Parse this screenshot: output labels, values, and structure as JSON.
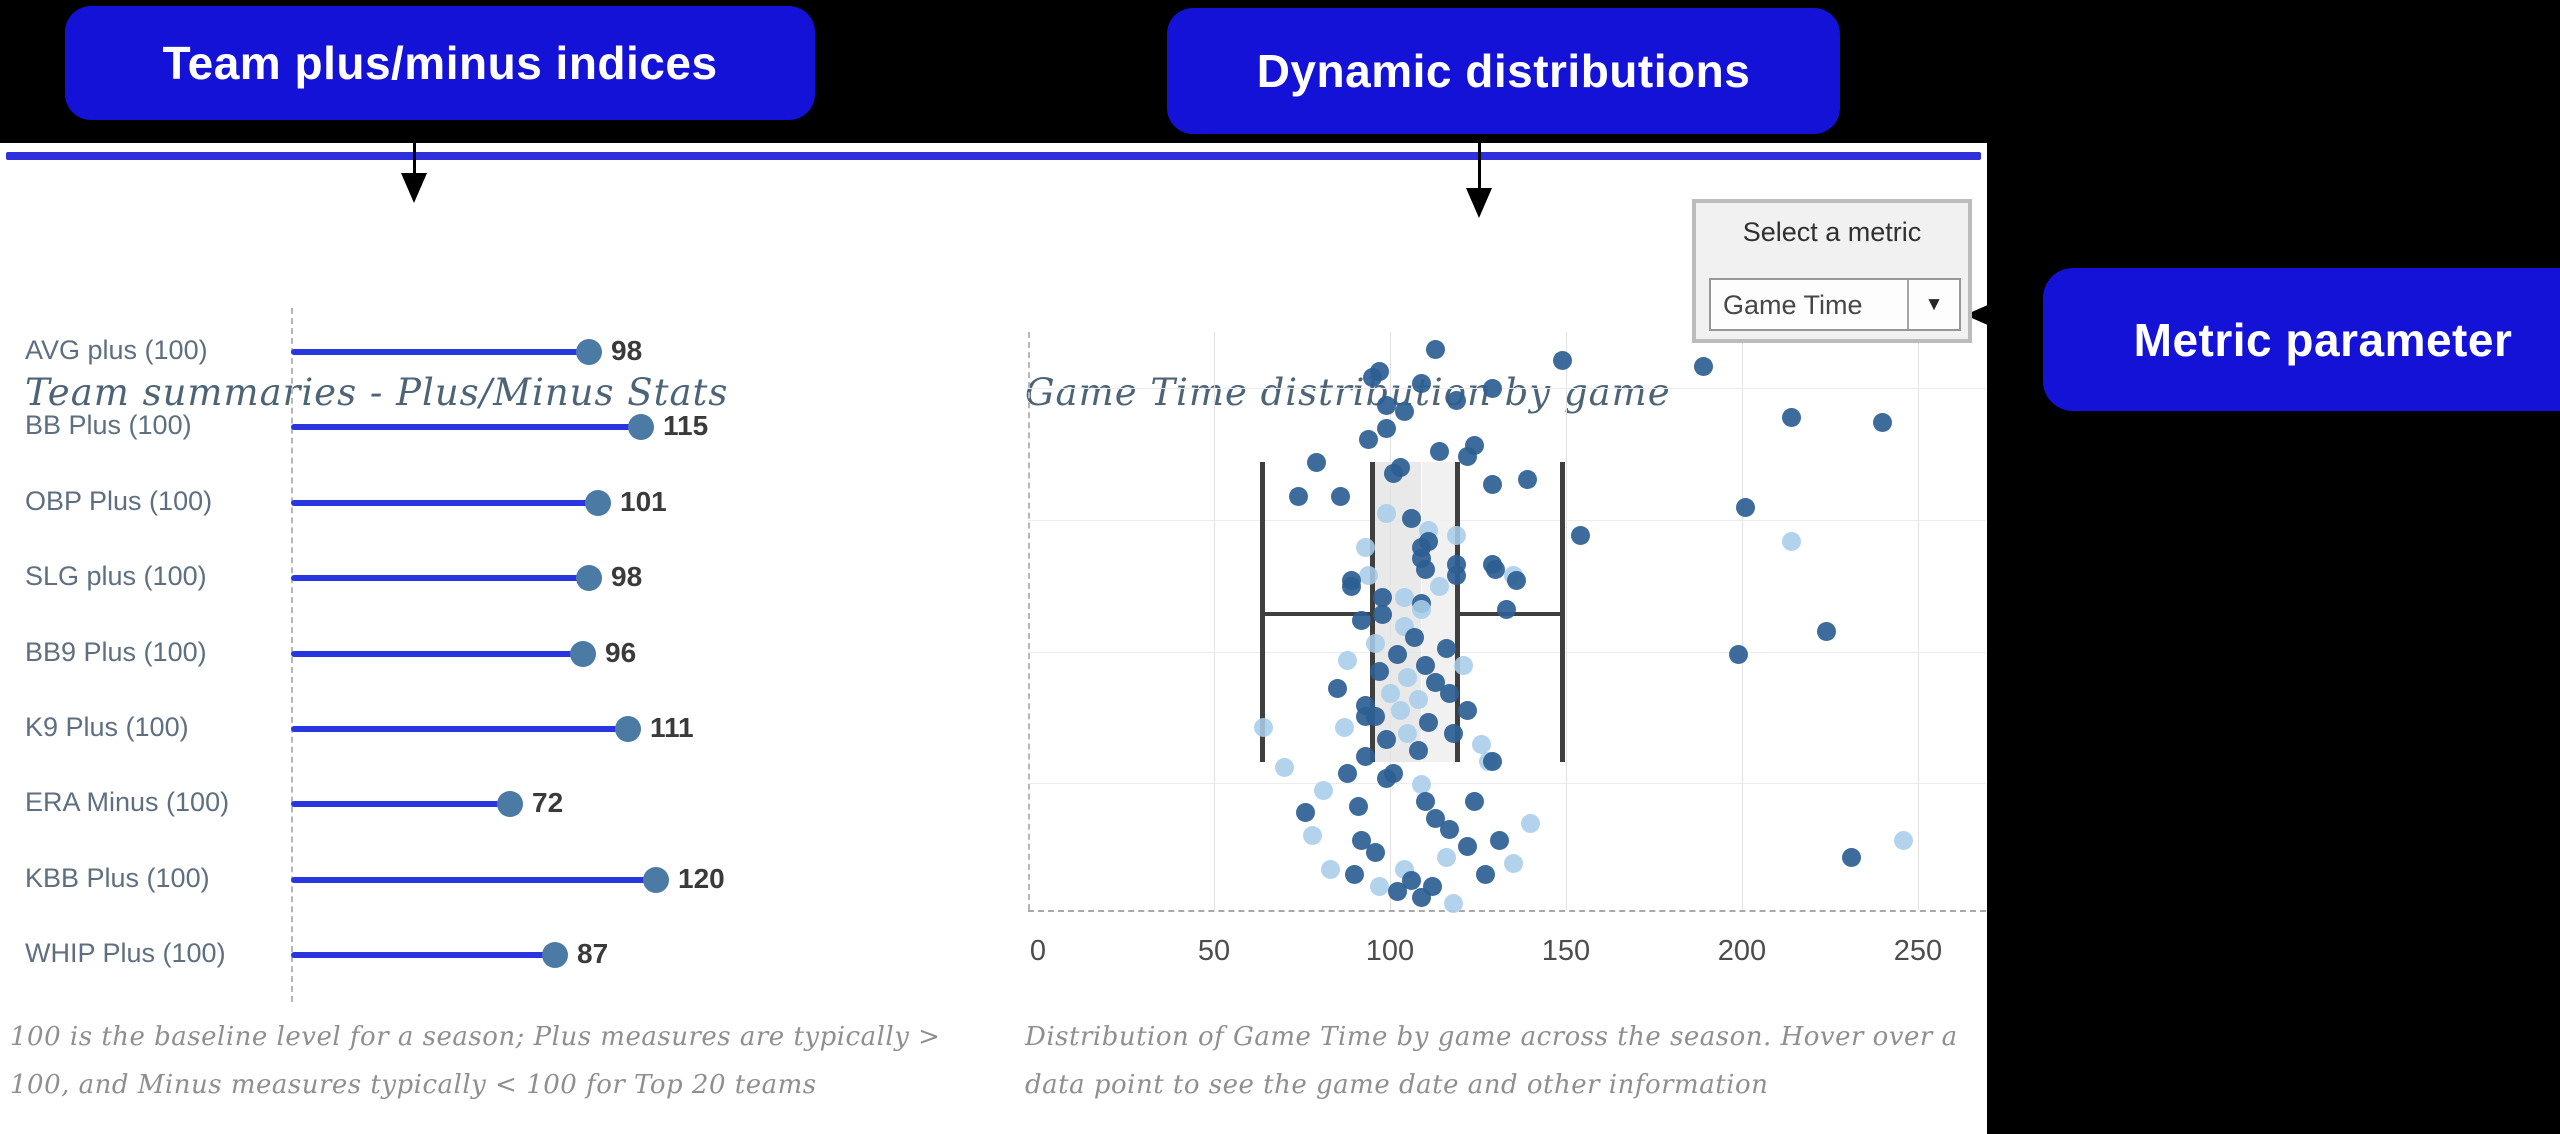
{
  "annotations": {
    "team_label": "Team plus/minus indices",
    "dist_label": "Dynamic distributions",
    "metric_label": "Metric parameter",
    "callout_bg": "#1412d6",
    "callout_text_color": "#ffffff",
    "divider_color": "#2f2fdb"
  },
  "chart_data": [
    {
      "type": "bar",
      "subtype": "lollipop-horizontal",
      "title": "Team summaries - Plus/Minus Stats",
      "categories": [
        "AVG plus (100)",
        "BB Plus (100)",
        "OBP Plus (100)",
        "SLG plus (100)",
        "BB9 Plus (100)",
        "K9 Plus (100)",
        "ERA Minus (100)",
        "KBB Plus (100)",
        "WHIP Plus (100)"
      ],
      "values": [
        98,
        115,
        101,
        98,
        96,
        111,
        72,
        120,
        87
      ],
      "baseline": 100,
      "xlim": [
        0,
        130
      ],
      "grid": false,
      "line_color": "#2936e0",
      "dot_color": "#4b7aa5",
      "footnote_lines": [
        "100 is the baseline level for a season; Plus measures are typically >",
        "100, and Minus measures typically < 100 for Top 20 teams"
      ]
    },
    {
      "type": "scatter",
      "subtype": "boxplot-with-jittered-points",
      "title": "Game Time distribution by game",
      "xlabel": "",
      "ylabel": "",
      "x_ticks": [
        0,
        50,
        100,
        150,
        200,
        250
      ],
      "xlim": [
        0,
        269
      ],
      "grid": true,
      "legend": "none",
      "box": {
        "whisker_low": 64,
        "q1": 95,
        "median": 109,
        "q3": 119,
        "whisker_high": 149
      },
      "point_colors": {
        "d": "#2d5e92",
        "l": "#a9cdea"
      },
      "points": [
        [
          113,
          0.02,
          "d"
        ],
        [
          149,
          0.04,
          "d"
        ],
        [
          189,
          0.05,
          "d"
        ],
        [
          97,
          0.06,
          "d"
        ],
        [
          95,
          0.07,
          "d"
        ],
        [
          109,
          0.08,
          "d"
        ],
        [
          129,
          0.09,
          "d"
        ],
        [
          119,
          0.11,
          "d"
        ],
        [
          99,
          0.12,
          "d"
        ],
        [
          104,
          0.13,
          "d"
        ],
        [
          214,
          0.14,
          "d"
        ],
        [
          240,
          0.15,
          "d"
        ],
        [
          99,
          0.16,
          "d"
        ],
        [
          94,
          0.18,
          "d"
        ],
        [
          124,
          0.19,
          "d"
        ],
        [
          114,
          0.2,
          "d"
        ],
        [
          122,
          0.21,
          "d"
        ],
        [
          79,
          0.22,
          "d"
        ],
        [
          103,
          0.23,
          "d"
        ],
        [
          101,
          0.24,
          "d"
        ],
        [
          139,
          0.25,
          "d"
        ],
        [
          129,
          0.26,
          "d"
        ],
        [
          74,
          0.28,
          "d"
        ],
        [
          86,
          0.28,
          "d"
        ],
        [
          201,
          0.3,
          "d"
        ],
        [
          99,
          0.31,
          "l"
        ],
        [
          106,
          0.32,
          "d"
        ],
        [
          111,
          0.34,
          "l"
        ],
        [
          154,
          0.35,
          "d"
        ],
        [
          119,
          0.35,
          "l"
        ],
        [
          214,
          0.36,
          "l"
        ],
        [
          111,
          0.36,
          "d"
        ],
        [
          93,
          0.37,
          "l"
        ],
        [
          109,
          0.37,
          "d"
        ],
        [
          109,
          0.39,
          "d"
        ],
        [
          119,
          0.4,
          "d"
        ],
        [
          129,
          0.4,
          "d"
        ],
        [
          110,
          0.41,
          "d"
        ],
        [
          130,
          0.41,
          "d"
        ],
        [
          94,
          0.42,
          "l"
        ],
        [
          119,
          0.42,
          "d"
        ],
        [
          135,
          0.42,
          "l"
        ],
        [
          89,
          0.43,
          "d"
        ],
        [
          136,
          0.43,
          "d"
        ],
        [
          89,
          0.44,
          "d"
        ],
        [
          114,
          0.44,
          "l"
        ],
        [
          98,
          0.46,
          "d"
        ],
        [
          104,
          0.46,
          "l"
        ],
        [
          109,
          0.47,
          "d"
        ],
        [
          133,
          0.48,
          "d"
        ],
        [
          109,
          0.48,
          "l"
        ],
        [
          98,
          0.49,
          "d"
        ],
        [
          92,
          0.5,
          "d"
        ],
        [
          104,
          0.51,
          "l"
        ],
        [
          224,
          0.52,
          "d"
        ],
        [
          107,
          0.53,
          "d"
        ],
        [
          96,
          0.54,
          "l"
        ],
        [
          116,
          0.55,
          "d"
        ],
        [
          199,
          0.56,
          "d"
        ],
        [
          102,
          0.56,
          "d"
        ],
        [
          88,
          0.57,
          "l"
        ],
        [
          110,
          0.58,
          "d"
        ],
        [
          121,
          0.58,
          "l"
        ],
        [
          97,
          0.59,
          "d"
        ],
        [
          105,
          0.6,
          "l"
        ],
        [
          113,
          0.61,
          "d"
        ],
        [
          85,
          0.62,
          "d"
        ],
        [
          100,
          0.63,
          "l"
        ],
        [
          117,
          0.63,
          "d"
        ],
        [
          108,
          0.64,
          "l"
        ],
        [
          93,
          0.65,
          "d"
        ],
        [
          122,
          0.66,
          "d"
        ],
        [
          103,
          0.66,
          "l"
        ],
        [
          96,
          0.67,
          "d"
        ],
        [
          93,
          0.67,
          "d"
        ],
        [
          111,
          0.68,
          "d"
        ],
        [
          64,
          0.69,
          "l"
        ],
        [
          87,
          0.69,
          "l"
        ],
        [
          105,
          0.7,
          "l"
        ],
        [
          118,
          0.7,
          "d"
        ],
        [
          99,
          0.71,
          "d"
        ],
        [
          126,
          0.72,
          "l"
        ],
        [
          108,
          0.73,
          "d"
        ],
        [
          93,
          0.74,
          "d"
        ],
        [
          128,
          0.75,
          "l"
        ],
        [
          129,
          0.75,
          "d"
        ],
        [
          70,
          0.76,
          "l"
        ],
        [
          88,
          0.77,
          "d"
        ],
        [
          101,
          0.77,
          "d"
        ],
        [
          99,
          0.78,
          "d"
        ],
        [
          109,
          0.79,
          "l"
        ],
        [
          81,
          0.8,
          "l"
        ],
        [
          110,
          0.82,
          "d"
        ],
        [
          124,
          0.82,
          "d"
        ],
        [
          91,
          0.83,
          "d"
        ],
        [
          76,
          0.84,
          "d"
        ],
        [
          113,
          0.85,
          "d"
        ],
        [
          140,
          0.86,
          "l"
        ],
        [
          117,
          0.87,
          "d"
        ],
        [
          78,
          0.88,
          "l"
        ],
        [
          92,
          0.89,
          "d"
        ],
        [
          246,
          0.89,
          "l"
        ],
        [
          131,
          0.89,
          "d"
        ],
        [
          122,
          0.9,
          "d"
        ],
        [
          96,
          0.91,
          "d"
        ],
        [
          231,
          0.92,
          "d"
        ],
        [
          116,
          0.92,
          "l"
        ],
        [
          135,
          0.93,
          "l"
        ],
        [
          104,
          0.94,
          "l"
        ],
        [
          83,
          0.94,
          "l"
        ],
        [
          90,
          0.95,
          "d"
        ],
        [
          127,
          0.95,
          "d"
        ],
        [
          106,
          0.96,
          "d"
        ],
        [
          97,
          0.97,
          "l"
        ],
        [
          112,
          0.97,
          "d"
        ],
        [
          102,
          0.98,
          "d"
        ],
        [
          109,
          0.99,
          "d"
        ],
        [
          118,
          1.0,
          "l"
        ]
      ],
      "dropdown": {
        "label": "Select a metric",
        "selected": "Game Time"
      },
      "footnote_lines": [
        "Distribution of Game Time by game across the season. Hover over a",
        "data point to see the game date and other information"
      ]
    }
  ]
}
